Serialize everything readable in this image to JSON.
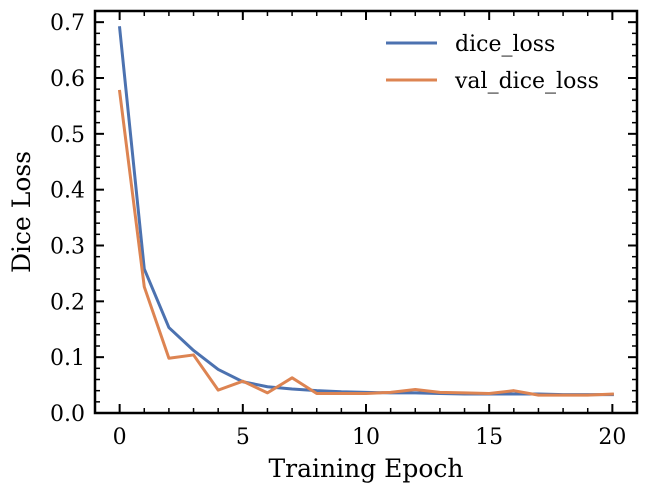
{
  "chart_data": {
    "type": "line",
    "xlabel": "Training Epoch",
    "ylabel": "Dice Loss",
    "xlim": [
      -1,
      21
    ],
    "ylim": [
      0,
      0.72
    ],
    "xticks": [
      0,
      5,
      10,
      15,
      20
    ],
    "xtick_labels": [
      "0",
      "5",
      "10",
      "15",
      "20"
    ],
    "yticks": [
      0,
      0.1,
      0.2,
      0.3,
      0.4,
      0.5,
      0.6,
      0.7
    ],
    "ytick_labels": [
      "0.0",
      "0.1",
      "0.2",
      "0.3",
      "0.4",
      "0.5",
      "0.6",
      "0.7"
    ],
    "grid": false,
    "legend_position": "top-right",
    "x": [
      0,
      1,
      2,
      3,
      4,
      5,
      6,
      7,
      8,
      9,
      10,
      11,
      12,
      13,
      14,
      15,
      16,
      17,
      18,
      19,
      20
    ],
    "series": [
      {
        "name": "dice_loss",
        "color": "#4c72b0",
        "values": [
          0.69,
          0.258,
          0.153,
          0.112,
          0.078,
          0.056,
          0.047,
          0.043,
          0.04,
          0.038,
          0.037,
          0.036,
          0.036,
          0.035,
          0.034,
          0.034,
          0.034,
          0.034,
          0.033,
          0.033,
          0.033
        ]
      },
      {
        "name": "val_dice_loss",
        "color": "#dd8452",
        "values": [
          0.576,
          0.226,
          0.098,
          0.104,
          0.041,
          0.057,
          0.036,
          0.063,
          0.035,
          0.035,
          0.035,
          0.037,
          0.042,
          0.037,
          0.036,
          0.035,
          0.04,
          0.032,
          0.032,
          0.032,
          0.034
        ]
      }
    ]
  }
}
